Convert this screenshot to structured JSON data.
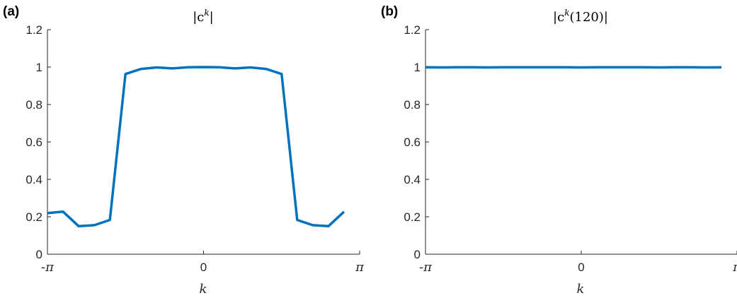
{
  "chart_data": [
    {
      "type": "line",
      "panel_label": "(a)",
      "title": {
        "pre": "|c",
        "sup": "k",
        "post": "|"
      },
      "xlabel": "k",
      "xlim": [
        -3.14159,
        3.14159
      ],
      "ylim": [
        0,
        1.2
      ],
      "xticks": [
        -3.14159,
        0,
        3.14159
      ],
      "xtick_labels": [
        "-π",
        "0",
        "π"
      ],
      "yticks": [
        0,
        0.2,
        0.4,
        0.6,
        0.8,
        1,
        1.2
      ],
      "ytick_labels": [
        "0",
        "0.2",
        "0.4",
        "0.6",
        "0.8",
        "1",
        "1.2"
      ],
      "grid": false,
      "series": [
        {
          "color": "#0072BD",
          "x": [
            -3.14159,
            -2.82743,
            -2.51327,
            -2.19911,
            -1.88496,
            -1.5708,
            -1.25664,
            -0.94248,
            -0.62832,
            -0.31416,
            0,
            0.31416,
            0.62832,
            0.94248,
            1.25664,
            1.5708,
            1.88496,
            2.19911,
            2.51327,
            2.82743
          ],
          "y": [
            0.22,
            0.227,
            0.15,
            0.155,
            0.183,
            0.963,
            0.99,
            0.998,
            0.993,
            0.999,
            1.0,
            0.999,
            0.993,
            0.998,
            0.99,
            0.963,
            0.183,
            0.155,
            0.15,
            0.227
          ]
        }
      ]
    },
    {
      "type": "line",
      "panel_label": "(b)",
      "title": {
        "pre": "|c",
        "sup": "k",
        "post": "(120)|"
      },
      "xlabel": "k",
      "xlim": [
        -3.14159,
        3.14159
      ],
      "ylim": [
        0,
        1.2
      ],
      "xticks": [
        -3.14159,
        0,
        3.14159
      ],
      "xtick_labels": [
        "-π",
        "0",
        "π"
      ],
      "yticks": [
        0,
        0.2,
        0.4,
        0.6,
        0.8,
        1,
        1.2
      ],
      "ytick_labels": [
        "0",
        "0.2",
        "0.4",
        "0.6",
        "0.8",
        "1",
        "1.2"
      ],
      "grid": false,
      "series": [
        {
          "color": "#0072BD",
          "x": [
            -3.14159,
            -2.82743,
            -2.51327,
            -2.19911,
            -1.88496,
            -1.5708,
            -1.25664,
            -0.94248,
            -0.62832,
            -0.31416,
            0,
            0.31416,
            0.62832,
            0.94248,
            1.25664,
            1.5708,
            1.88496,
            2.19911,
            2.51327,
            2.82743
          ],
          "y": [
            0.999,
            0.998,
            0.999,
            0.999,
            0.998,
            0.999,
            0.999,
            0.999,
            0.999,
            0.999,
            0.998,
            0.999,
            0.999,
            0.999,
            0.999,
            0.998,
            0.999,
            0.999,
            0.998,
            0.999
          ]
        }
      ]
    }
  ]
}
